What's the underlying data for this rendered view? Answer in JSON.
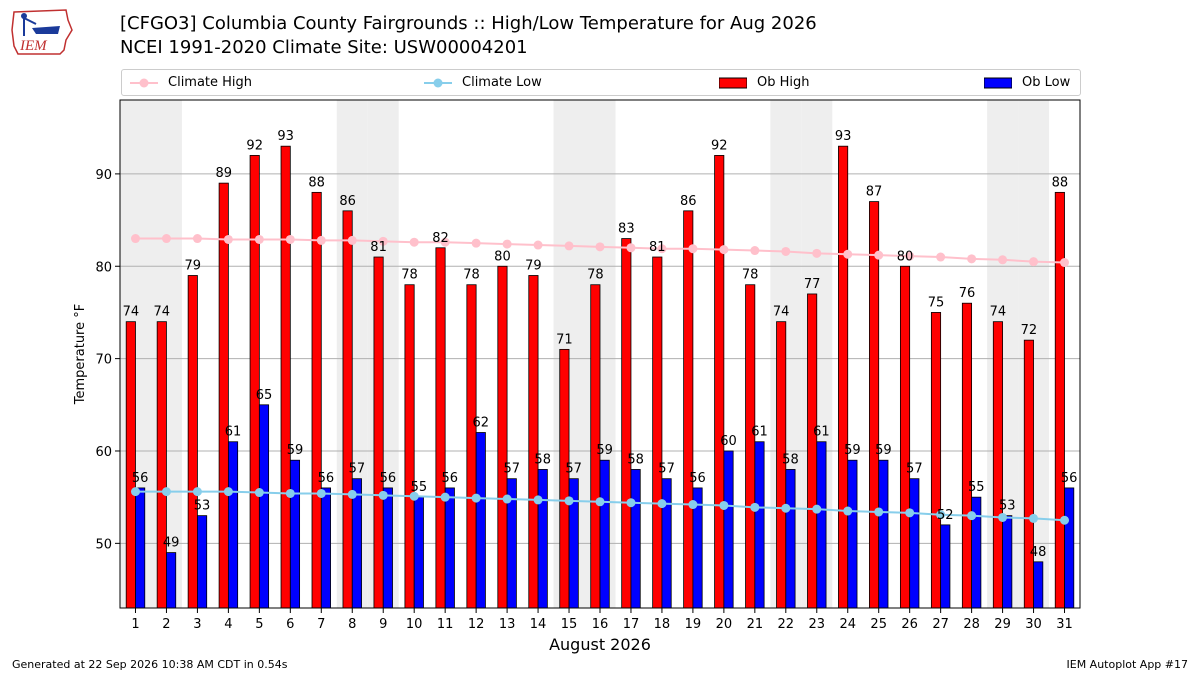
{
  "header": {
    "title_line1": "[CFGO3] Columbia County Fairgrounds :: High/Low Temperature for Aug 2026",
    "title_line2": "NCEI 1991-2020 Climate Site: USW00004201",
    "logo_text": "IEM"
  },
  "footer": {
    "generated": "Generated at 22 Sep 2026 10:38 AM CDT in 0.54s",
    "app": "IEM Autoplot App #17"
  },
  "colors": {
    "ob_high": "#ff0000",
    "ob_low": "#0000ff",
    "climate_high": "#ffc0cb",
    "climate_low": "#87ceeb",
    "weekend_shade": "#eeeeee"
  },
  "chart_data": {
    "type": "bar",
    "xlabel": "August 2026",
    "ylabel": "Temperature °F",
    "ylim": [
      43,
      98
    ],
    "yticks": [
      50,
      60,
      70,
      80,
      90
    ],
    "grid": true,
    "legend_position": "top",
    "categories": [
      1,
      2,
      3,
      4,
      5,
      6,
      7,
      8,
      9,
      10,
      11,
      12,
      13,
      14,
      15,
      16,
      17,
      18,
      19,
      20,
      21,
      22,
      23,
      24,
      25,
      26,
      27,
      28,
      29,
      30,
      31
    ],
    "shaded_days": [
      1,
      2,
      8,
      9,
      15,
      16,
      22,
      23,
      29,
      30
    ],
    "series": [
      {
        "name": "Ob High",
        "kind": "bar",
        "values": [
          74,
          74,
          79,
          89,
          92,
          93,
          88,
          86,
          81,
          78,
          82,
          78,
          80,
          79,
          71,
          78,
          83,
          81,
          86,
          92,
          78,
          74,
          77,
          93,
          87,
          80,
          75,
          76,
          74,
          72,
          88
        ]
      },
      {
        "name": "Ob Low",
        "kind": "bar",
        "values": [
          56,
          49,
          53,
          61,
          65,
          59,
          56,
          57,
          56,
          55,
          56,
          62,
          57,
          58,
          57,
          59,
          58,
          57,
          56,
          60,
          61,
          58,
          61,
          59,
          59,
          57,
          52,
          55,
          53,
          48,
          56
        ]
      },
      {
        "name": "Climate High",
        "kind": "line",
        "values": [
          83.0,
          83.0,
          83.0,
          82.9,
          82.9,
          82.9,
          82.8,
          82.8,
          82.7,
          82.6,
          82.6,
          82.5,
          82.4,
          82.3,
          82.2,
          82.1,
          82.0,
          81.9,
          81.9,
          81.8,
          81.7,
          81.6,
          81.4,
          81.3,
          81.2,
          81.1,
          81.0,
          80.8,
          80.7,
          80.5,
          80.4
        ]
      },
      {
        "name": "Climate Low",
        "kind": "line",
        "values": [
          55.6,
          55.6,
          55.6,
          55.6,
          55.5,
          55.4,
          55.4,
          55.3,
          55.2,
          55.1,
          55.0,
          54.9,
          54.8,
          54.7,
          54.6,
          54.5,
          54.4,
          54.3,
          54.2,
          54.1,
          53.9,
          53.8,
          53.7,
          53.5,
          53.4,
          53.3,
          53.1,
          53.0,
          52.8,
          52.7,
          52.5
        ]
      }
    ]
  }
}
